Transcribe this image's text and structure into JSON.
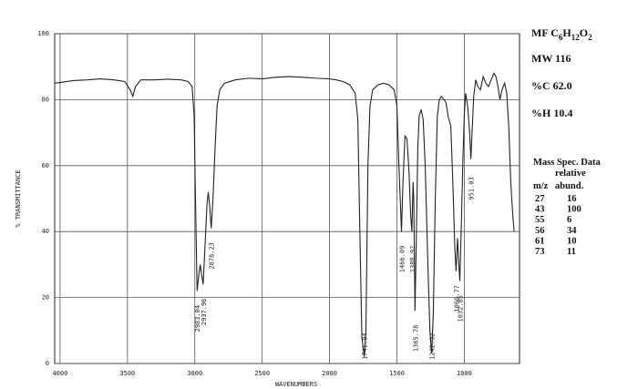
{
  "chart_data": {
    "type": "line",
    "x_label": "WAVENUMBERS",
    "y_label": "% TRANSMITTANCE",
    "xlim": [
      4040,
      590
    ],
    "ylim": [
      0,
      100
    ],
    "xticks": [
      4000,
      3500,
      3000,
      2500,
      2000,
      1500,
      1000
    ],
    "yticks": [
      0,
      20,
      40,
      60,
      80,
      100
    ],
    "grid": true,
    "series": [
      {
        "color": "#222222",
        "x": [
          4040,
          4000,
          3900,
          3800,
          3700,
          3600,
          3520,
          3480,
          3460,
          3440,
          3400,
          3300,
          3200,
          3100,
          3050,
          3020,
          3005,
          2995,
          2983.04,
          2970,
          2960,
          2950,
          2937.96,
          2925,
          2910,
          2900,
          2890,
          2878.23,
          2865,
          2850,
          2835,
          2815,
          2780,
          2700,
          2600,
          2500,
          2400,
          2300,
          2200,
          2100,
          2000,
          1950,
          1900,
          1850,
          1810,
          1790,
          1775,
          1760,
          1741.94,
          1730,
          1715,
          1700,
          1680,
          1640,
          1600,
          1560,
          1520,
          1500,
          1485,
          1466.09,
          1455,
          1440,
          1425,
          1410,
          1398,
          1388.92,
          1380,
          1375,
          1365.78,
          1355,
          1345,
          1335,
          1320,
          1305,
          1290,
          1270,
          1255,
          1242.32,
          1230,
          1215,
          1200,
          1185,
          1170,
          1150,
          1135,
          1120,
          1100,
          1085,
          1070,
          1060.77,
          1050,
          1040,
          1032.85,
          1020,
          1010,
          1000,
          990,
          975,
          960,
          951.03,
          940,
          930,
          915,
          900,
          880,
          860,
          840,
          820,
          800,
          780,
          765,
          750,
          735,
          720,
          700,
          685,
          670,
          655,
          640,
          630
        ],
        "values": [
          85,
          85.2,
          85.8,
          86,
          86.3,
          86,
          85.5,
          83,
          81,
          84,
          86,
          86,
          86.2,
          86,
          85.5,
          84,
          75,
          50,
          22,
          27,
          30,
          27,
          24,
          35,
          48,
          52,
          48,
          41,
          50,
          65,
          78,
          83,
          85,
          86,
          86.5,
          86.3,
          86.8,
          87,
          86.8,
          86.5,
          86.3,
          86,
          85.5,
          84.5,
          82,
          74,
          40,
          8,
          2,
          10,
          60,
          78,
          83,
          84.5,
          85,
          84.5,
          83,
          78,
          60,
          40,
          55,
          69,
          68,
          58,
          45,
          40,
          55,
          50,
          16,
          40,
          65,
          75,
          77,
          74,
          60,
          30,
          10,
          3,
          15,
          50,
          75,
          80,
          81,
          80,
          79,
          75,
          72,
          55,
          35,
          28,
          38,
          30,
          25,
          45,
          62,
          75,
          82,
          78,
          70,
          62,
          72,
          81,
          86,
          84,
          83,
          87,
          85,
          84,
          86,
          88,
          87,
          84,
          80,
          83,
          85,
          82,
          72,
          55,
          45,
          40
        ]
      }
    ],
    "peak_labels": [
      2983.04,
      2937.96,
      2878.23,
      1741.94,
      1466.09,
      1388.92,
      1365.78,
      1242.32,
      1060.77,
      1032.85,
      951.03
    ]
  },
  "info": {
    "formula": {
      "prefix": "MF",
      "parts": [
        {
          "symbol": "C",
          "count": "6"
        },
        {
          "symbol": "H",
          "count": "12"
        },
        {
          "symbol": "O",
          "count": "2"
        }
      ]
    },
    "mw": "MW 116",
    "carbon": "%C 62.0",
    "hydrogen": "%H 10.4"
  },
  "mass_spec": {
    "title": "Mass Spec. Data",
    "header": [
      "m/z",
      "relative",
      "abund."
    ],
    "rows": [
      [
        27,
        16
      ],
      [
        43,
        100
      ],
      [
        55,
        6
      ],
      [
        56,
        34
      ],
      [
        61,
        10
      ],
      [
        73,
        11
      ]
    ]
  }
}
